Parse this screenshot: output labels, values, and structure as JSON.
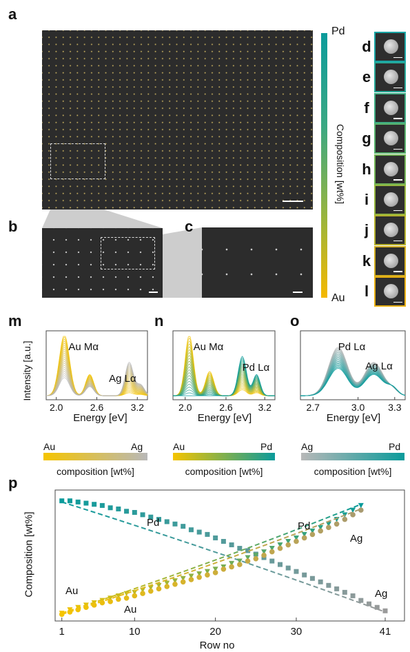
{
  "panels": {
    "a": "a",
    "b": "b",
    "c": "c",
    "tiles": [
      "d",
      "e",
      "f",
      "g",
      "h",
      "i",
      "j",
      "k",
      "l"
    ],
    "m": "m",
    "n": "n",
    "o": "o",
    "p": "p"
  },
  "tile_colors": [
    "#1aa6a6",
    "#27a898",
    "#3fad84",
    "#58b26d",
    "#74b657",
    "#96b63f",
    "#b6b22c",
    "#d2ad1e",
    "#e9b012"
  ],
  "colorbar": {
    "top": "Pd",
    "bottom": "Au",
    "title": "Composition [wt%]",
    "color_top": "#0b9b9b",
    "color_bottom": "#f5b800"
  },
  "spectra": [
    {
      "id": "m",
      "ylabel": "Intensity [a.u.]",
      "xlabel": "Energy [eV]",
      "ticks": [
        "2.0",
        "2.6",
        "3.2"
      ],
      "peak1": "Au Mα",
      "peak2": "Ag Lα",
      "legend": {
        "left": "Au",
        "right": "Ag",
        "caption": "composition [wt%]"
      },
      "color_start": "#f5c400",
      "color_end": "#b8b8b8"
    },
    {
      "id": "n",
      "xlabel": "Energy [eV]",
      "ticks": [
        "2.0",
        "2.6",
        "3.2"
      ],
      "peak1": "Au Mα",
      "peak2": "Pd Lα",
      "legend": {
        "left": "Au",
        "right": "Pd",
        "caption": "composition [wt%]"
      },
      "color_start": "#f5c400",
      "color_end": "#0b9b9b"
    },
    {
      "id": "o",
      "xlabel": "Energy [eV]",
      "ticks": [
        "2.7",
        "3.0",
        "3.3"
      ],
      "peak1": "Pd Lα",
      "peak2": "Ag Lα",
      "legend": {
        "left": "Ag",
        "right": "Pd",
        "caption": "composition [wt%]"
      },
      "color_start": "#b8b8b8",
      "color_end": "#0b9b9b"
    }
  ],
  "chart_data": {
    "type": "scatter",
    "xlabel": "Row no",
    "ylabel": "Composition [wt%]",
    "xticks": [
      "1",
      "10",
      "20",
      "30",
      "41"
    ],
    "xlim": [
      0,
      43
    ],
    "ylim": [
      0,
      100
    ],
    "annotations": {
      "pd_left": "Pd",
      "au_left": "Au",
      "au_mid": "Au",
      "pd_right": "Pd",
      "ag_upper": "Ag",
      "ag_lower": "Ag"
    },
    "series": [
      {
        "marker": "square",
        "color_start": "#0b9b9b",
        "color_end": "#9a9a9a",
        "x": [
          1,
          2,
          3,
          4,
          5,
          6,
          7,
          8,
          9,
          10,
          11,
          12,
          13,
          14,
          15,
          16,
          17,
          18,
          19,
          20,
          21,
          22,
          23,
          24,
          25,
          26,
          27,
          28,
          29,
          30,
          31,
          32,
          33,
          34,
          35,
          36,
          37,
          38,
          39,
          40,
          41
        ],
        "values": [
          99,
          99,
          98,
          97,
          96,
          95,
          93,
          92,
          90,
          89,
          87,
          85,
          83,
          81,
          79,
          77,
          74,
          72,
          70,
          67,
          64,
          61,
          58,
          56,
          53,
          50,
          47,
          44,
          41,
          38,
          35,
          32,
          29,
          26,
          23,
          20,
          17,
          13,
          10,
          7,
          4
        ],
        "fit": [
          [
            1,
            98
          ],
          [
            41,
            3
          ]
        ]
      },
      {
        "marker": "triangle",
        "color_start": "#f5c400",
        "color_end": "#0b9b9b",
        "x": [
          1,
          2,
          3,
          4,
          5,
          6,
          7,
          8,
          9,
          10,
          11,
          12,
          13,
          14,
          15,
          16,
          17,
          18,
          19,
          20,
          21,
          22,
          23,
          24,
          25,
          26,
          27,
          28,
          29,
          30,
          31,
          32,
          33,
          34,
          35,
          36,
          37,
          38
        ],
        "values": [
          2,
          5,
          7,
          9,
          11,
          13,
          15,
          17,
          19,
          20,
          22,
          24,
          26,
          28,
          30,
          32,
          34,
          36,
          38,
          40,
          42,
          45,
          47,
          50,
          52,
          55,
          58,
          61,
          64,
          67,
          70,
          73,
          76,
          79,
          83,
          87,
          91,
          95
        ],
        "fit": [
          [
            1,
            2
          ],
          [
            38,
            96
          ]
        ]
      },
      {
        "marker": "circle",
        "color_start": "#f5c400",
        "color_end": "#a89a70",
        "x": [
          1,
          2,
          3,
          4,
          5,
          6,
          7,
          8,
          9,
          10,
          11,
          12,
          13,
          14,
          15,
          16,
          17,
          18,
          19,
          20,
          21,
          22,
          23,
          24,
          25,
          26,
          27,
          28,
          29,
          30,
          31,
          32,
          33,
          34,
          35,
          36,
          37,
          38
        ],
        "values": [
          1,
          3,
          5,
          7,
          9,
          11,
          12,
          14,
          15,
          17,
          19,
          21,
          23,
          25,
          27,
          29,
          31,
          33,
          35,
          37,
          40,
          42,
          44,
          47,
          49,
          52,
          55,
          58,
          61,
          64,
          67,
          70,
          73,
          76,
          79,
          83,
          87,
          91
        ],
        "fit": [
          [
            1,
            1
          ],
          [
            38,
            92
          ]
        ]
      }
    ]
  }
}
